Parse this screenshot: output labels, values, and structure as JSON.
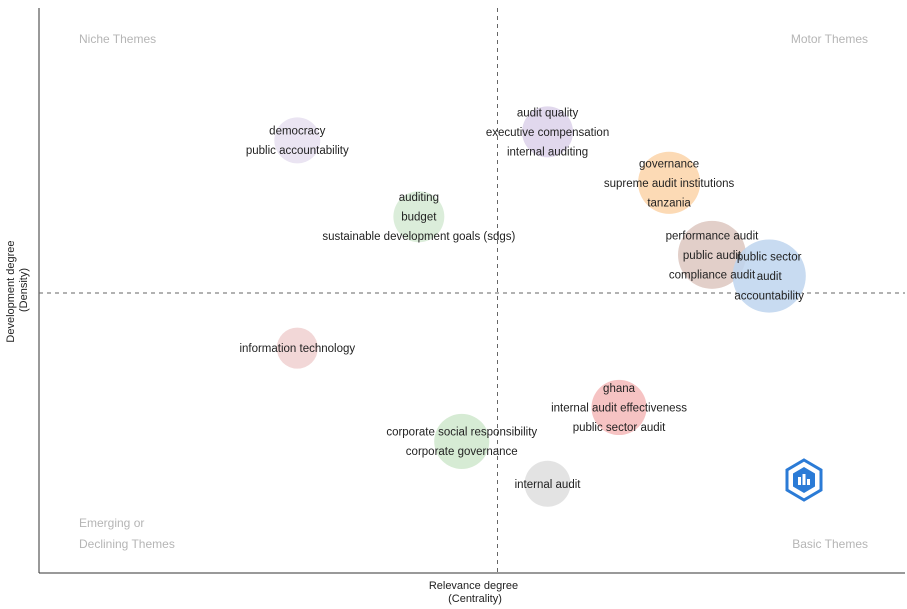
{
  "chart_data": {
    "type": "scatter",
    "title": "",
    "xlabel": [
      "Relevance degree",
      "(Centrality)"
    ],
    "ylabel": [
      "Development degree",
      "(Density)"
    ],
    "quadrants": {
      "top_left": [
        "Niche Themes"
      ],
      "top_right": [
        "Motor Themes"
      ],
      "bottom_left": [
        "Emerging or",
        "Declining Themes"
      ],
      "bottom_right": [
        "Basic Themes"
      ]
    },
    "xlim": [
      0,
      100
    ],
    "ylim": [
      0,
      100
    ],
    "x_mid": 50,
    "y_mid": 50,
    "clusters": [
      {
        "x": 22,
        "y": 86,
        "size": 1,
        "color": "#e6dff0",
        "labels": [
          "democracy",
          "public accountability"
        ]
      },
      {
        "x": 57,
        "y": 88,
        "size": 1.5,
        "color": "#dcd1ea",
        "labels": [
          "audit quality",
          "executive compensation",
          "internal auditing"
        ]
      },
      {
        "x": 74,
        "y": 76,
        "size": 3,
        "color": "#fbd3a8",
        "labels": [
          "governance",
          "supreme audit institutions",
          "tanzania"
        ]
      },
      {
        "x": 39,
        "y": 68,
        "size": 1.5,
        "color": "#d5ead3",
        "labels": [
          "auditing",
          "budget",
          "sustainable development goals (sdgs)"
        ]
      },
      {
        "x": 80,
        "y": 59,
        "size": 4,
        "color": "#ddc7bf",
        "labels": [
          "performance audit",
          "public audit",
          "compliance audit"
        ]
      },
      {
        "x": 88,
        "y": 54,
        "size": 5,
        "color": "#bed5ee",
        "labels": [
          "public sector",
          "audit",
          "accountability"
        ]
      },
      {
        "x": 22,
        "y": 37,
        "size": 0.6,
        "color": "#f0d0d0",
        "labels": [
          "information technology"
        ]
      },
      {
        "x": 67,
        "y": 23,
        "size": 2,
        "color": "#f4b8b8",
        "labels": [
          "ghana",
          "internal audit effectiveness",
          "public sector audit"
        ]
      },
      {
        "x": 45,
        "y": 15,
        "size": 2,
        "color": "#cfe8cc",
        "labels": [
          "corporate social responsibility",
          "corporate governance"
        ]
      },
      {
        "x": 57,
        "y": 5,
        "size": 1,
        "color": "#dedede",
        "labels": [
          "internal audit"
        ]
      }
    ]
  },
  "logo": {
    "color": "#2b7bd6",
    "icon": "bibliometrix-logo-icon"
  }
}
